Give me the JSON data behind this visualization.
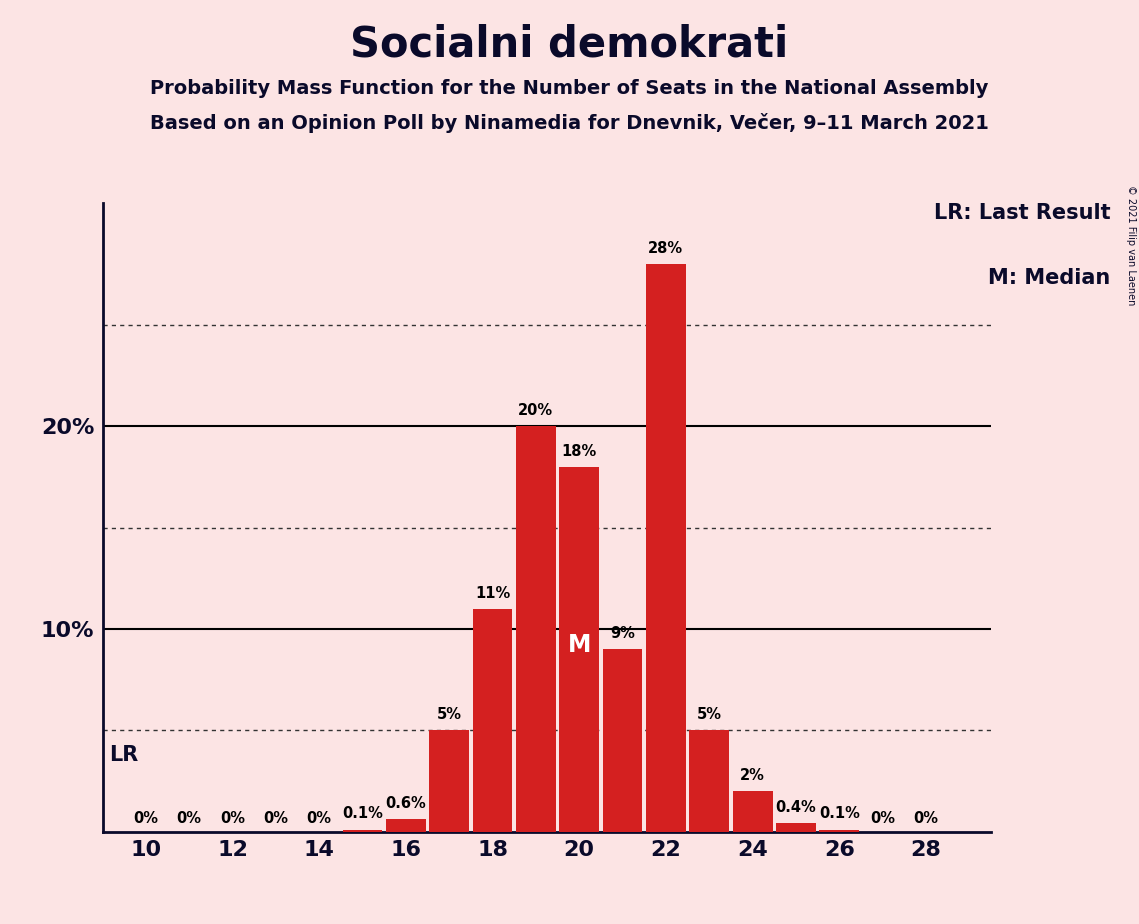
{
  "title": "Socialni demokrati",
  "subtitle1": "Probability Mass Function for the Number of Seats in the National Assembly",
  "subtitle2": "Based on an Opinion Poll by Ninamedia for Dnevnik, Večer, 9–11 March 2021",
  "copyright": "© 2021 Filip van Laenen",
  "background_color": "#fce4e4",
  "bar_color": "#d42020",
  "seats": [
    10,
    11,
    12,
    13,
    14,
    15,
    16,
    17,
    18,
    19,
    20,
    21,
    22,
    23,
    24,
    25,
    26,
    27,
    28
  ],
  "probabilities": [
    0.0,
    0.0,
    0.0,
    0.0,
    0.0,
    0.1,
    0.6,
    5.0,
    11.0,
    20.0,
    18.0,
    9.0,
    28.0,
    5.0,
    2.0,
    0.4,
    0.1,
    0.0,
    0.0
  ],
  "bar_labels": [
    "0%",
    "0%",
    "0%",
    "0%",
    "0%",
    "0.1%",
    "0.6%",
    "5%",
    "11%",
    "20%",
    "18%",
    "9%",
    "28%",
    "5%",
    "2%",
    "0.4%",
    "0.1%",
    "0%",
    "0%"
  ],
  "lr_seat": 10,
  "median_seat": 20,
  "xlim": [
    9.0,
    29.5
  ],
  "ylim": [
    0,
    31
  ],
  "xticks": [
    10,
    12,
    14,
    16,
    18,
    20,
    22,
    24,
    26,
    28
  ],
  "solid_gridlines": [
    10,
    20
  ],
  "dotted_gridlines": [
    5,
    15,
    25
  ],
  "legend_lr": "LR: Last Result",
  "legend_m": "M: Median"
}
